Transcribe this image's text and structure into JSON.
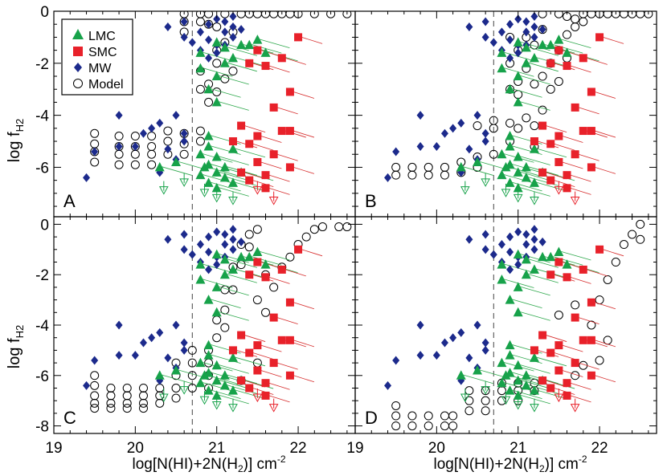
{
  "colors": {
    "LMC": "#17a24a",
    "SMC": "#e8212a",
    "MW": "#1c2a8c",
    "Model": "#000000",
    "LMC_tail": "#2ea84c",
    "SMC_tail": "#d62b2b"
  },
  "axis_labels": {
    "y_main": "log f",
    "y_sub": "H2",
    "x_prefix": "log[N(HI)+2N(H",
    "x_sub": "2",
    "x_suffix": ")] cm",
    "x_sup": "-2"
  },
  "legend": [
    {
      "name": "LMC",
      "marker": "triangle"
    },
    {
      "name": "SMC",
      "marker": "square"
    },
    {
      "name": "MW",
      "marker": "diamond"
    },
    {
      "name": "Model",
      "marker": "open-circle"
    }
  ],
  "chart_data": {
    "type": "scatter",
    "xlim": [
      19,
      22.7
    ],
    "xticks": [
      "19",
      "20",
      "21",
      "22"
    ],
    "threshold_x": 20.7,
    "top_row_ylim": [
      -7.9,
      0
    ],
    "top_row_yticks": [
      "0",
      "-2",
      "-4",
      "-6"
    ],
    "bottom_row_ylim": [
      -8.3,
      0.3
    ],
    "bottom_row_yticks": [
      "0",
      "-2",
      "-4",
      "-6",
      "-8"
    ],
    "panel_labels": [
      "A",
      "B",
      "C",
      "D"
    ],
    "MW": [
      [
        19.4,
        -6.4
      ],
      [
        19.5,
        -5.4
      ],
      [
        19.8,
        -4.0
      ],
      [
        19.8,
        -5.2
      ],
      [
        20.0,
        -5.2
      ],
      [
        20.1,
        -4.7
      ],
      [
        20.2,
        -4.5
      ],
      [
        20.3,
        -4.3
      ],
      [
        20.3,
        -6.2
      ],
      [
        20.4,
        -5.3
      ],
      [
        20.4,
        -0.6
      ],
      [
        20.5,
        -4.0
      ],
      [
        20.5,
        -5.7
      ],
      [
        20.6,
        -1.0
      ],
      [
        20.6,
        -5.0
      ],
      [
        20.6,
        -4.7
      ],
      [
        20.6,
        -0.4
      ],
      [
        20.7,
        -1.2
      ],
      [
        20.8,
        -0.8
      ],
      [
        20.8,
        -1.5
      ],
      [
        20.9,
        -0.5
      ],
      [
        20.9,
        -1.1
      ],
      [
        21.0,
        -0.3
      ],
      [
        21.0,
        -1.3
      ],
      [
        21.1,
        -0.8
      ],
      [
        21.1,
        -0.4
      ],
      [
        21.2,
        -1.0
      ],
      [
        21.2,
        -0.6
      ],
      [
        21.3,
        -0.7
      ],
      [
        21.0,
        -1.6
      ],
      [
        20.9,
        -1.8
      ],
      [
        21.1,
        -1.3
      ],
      [
        21.2,
        -0.2
      ]
    ],
    "LMC": [
      [
        20.3,
        -6.0
      ],
      [
        20.5,
        -5.8
      ],
      [
        20.8,
        -2.2
      ],
      [
        20.8,
        -1.6
      ],
      [
        20.9,
        -3.0
      ],
      [
        20.9,
        -4.8
      ],
      [
        20.8,
        -5.5
      ],
      [
        20.9,
        -5.9
      ],
      [
        21.0,
        -1.2
      ],
      [
        21.0,
        -2.5
      ],
      [
        21.0,
        -3.5
      ],
      [
        21.1,
        -2.0
      ],
      [
        21.1,
        -1.4
      ],
      [
        21.2,
        -1.8
      ],
      [
        21.3,
        -1.3
      ],
      [
        21.4,
        -1.3
      ],
      [
        21.5,
        -1.1
      ],
      [
        21.6,
        -1.6
      ],
      [
        20.8,
        -6.3
      ],
      [
        20.9,
        -6.6
      ],
      [
        21.0,
        -6.2
      ],
      [
        21.0,
        -6.8
      ],
      [
        21.1,
        -6.4
      ],
      [
        21.1,
        -6.0
      ],
      [
        21.2,
        -6.6
      ],
      [
        21.2,
        -5.3
      ],
      [
        21.3,
        -6.2
      ],
      [
        20.9,
        -5.2
      ],
      [
        21.0,
        -5.6
      ],
      [
        20.85,
        -6.0
      ]
    ],
    "LMC_upper_limits": [
      [
        20.35,
        -6.9
      ],
      [
        20.6,
        -6.6
      ],
      [
        21.0,
        -7.2
      ],
      [
        21.2,
        -7.3
      ],
      [
        20.85,
        -7.0
      ]
    ],
    "SMC": [
      [
        21.2,
        -5.0
      ],
      [
        21.3,
        -4.4
      ],
      [
        21.3,
        -6.2
      ],
      [
        21.4,
        -5.1
      ],
      [
        21.4,
        -2.0
      ],
      [
        21.5,
        -5.8
      ],
      [
        21.5,
        -1.5
      ],
      [
        21.6,
        -6.3
      ],
      [
        21.6,
        -2.1
      ],
      [
        21.6,
        -6.8
      ],
      [
        21.7,
        -5.5
      ],
      [
        21.7,
        -3.7
      ],
      [
        21.8,
        -4.6
      ],
      [
        21.8,
        -1.8
      ],
      [
        21.9,
        -3.1
      ],
      [
        21.9,
        -4.6
      ],
      [
        21.9,
        -6.0
      ],
      [
        22.0,
        -1.0
      ],
      [
        21.5,
        -4.8
      ],
      [
        21.4,
        -6.5
      ]
    ],
    "SMC_upper_limits": [
      [
        21.5,
        -6.9
      ],
      [
        21.7,
        -7.3
      ]
    ],
    "model_A": [
      [
        19.5,
        -4.7
      ],
      [
        19.5,
        -5.1
      ],
      [
        19.5,
        -5.4
      ],
      [
        19.5,
        -5.8
      ],
      [
        19.8,
        -4.8
      ],
      [
        19.8,
        -5.2
      ],
      [
        19.8,
        -5.5
      ],
      [
        19.8,
        -5.9
      ],
      [
        20.0,
        -4.8
      ],
      [
        20.0,
        -5.2
      ],
      [
        20.0,
        -5.5
      ],
      [
        20.0,
        -5.9
      ],
      [
        20.2,
        -4.8
      ],
      [
        20.2,
        -5.2
      ],
      [
        20.2,
        -5.5
      ],
      [
        20.2,
        -5.9
      ],
      [
        20.4,
        -4.6
      ],
      [
        20.4,
        -5.0
      ],
      [
        20.4,
        -5.5
      ],
      [
        20.6,
        -4.7
      ],
      [
        20.6,
        -5.1
      ],
      [
        20.6,
        -5.5
      ],
      [
        20.8,
        -4.6
      ],
      [
        20.8,
        -5.0
      ],
      [
        20.8,
        -3.0
      ],
      [
        20.8,
        -2.3
      ],
      [
        20.8,
        -0.1
      ],
      [
        20.8,
        -0.4
      ],
      [
        20.9,
        -3.5
      ],
      [
        20.9,
        -2.8
      ],
      [
        20.9,
        -0.1
      ],
      [
        20.9,
        -0.5
      ],
      [
        21.0,
        -3.1
      ],
      [
        21.0,
        -2.0
      ],
      [
        21.0,
        -0.6
      ],
      [
        21.0,
        -1.5
      ],
      [
        21.1,
        -2.6
      ],
      [
        21.1,
        -1.2
      ],
      [
        21.1,
        -0.1
      ],
      [
        21.2,
        -2.3
      ],
      [
        21.2,
        -0.8
      ],
      [
        21.3,
        -0.1
      ],
      [
        21.4,
        -0.1
      ],
      [
        21.5,
        -0.1
      ],
      [
        21.6,
        -0.1
      ],
      [
        21.7,
        -0.1
      ],
      [
        21.8,
        -0.1
      ],
      [
        21.9,
        -0.1
      ],
      [
        22.0,
        -0.1
      ],
      [
        22.2,
        -0.1
      ],
      [
        22.4,
        -0.1
      ],
      [
        22.6,
        -0.1
      ],
      [
        20.6,
        -0.1
      ],
      [
        20.6,
        -0.4
      ],
      [
        20.6,
        -0.8
      ]
    ],
    "model_B": [
      [
        19.5,
        -6.0
      ],
      [
        19.5,
        -6.3
      ],
      [
        19.7,
        -6.0
      ],
      [
        19.7,
        -6.3
      ],
      [
        19.9,
        -6.0
      ],
      [
        19.9,
        -6.3
      ],
      [
        20.1,
        -6.0
      ],
      [
        20.1,
        -6.3
      ],
      [
        20.3,
        -5.8
      ],
      [
        20.3,
        -6.2
      ],
      [
        20.5,
        -4.4
      ],
      [
        20.5,
        -5.6
      ],
      [
        20.5,
        -6.0
      ],
      [
        20.7,
        -4.2
      ],
      [
        20.7,
        -4.5
      ],
      [
        20.7,
        -5.5
      ],
      [
        20.9,
        -4.3
      ],
      [
        20.9,
        -5.0
      ],
      [
        21.0,
        -4.5
      ],
      [
        21.1,
        -4.1
      ],
      [
        21.2,
        -4.4
      ],
      [
        21.2,
        -5.2
      ],
      [
        21.3,
        -3.8
      ],
      [
        20.9,
        -3.0
      ],
      [
        20.9,
        -2.0
      ],
      [
        20.9,
        -1.0
      ],
      [
        21.0,
        -2.7
      ],
      [
        21.0,
        -1.5
      ],
      [
        21.0,
        -3.2
      ],
      [
        21.1,
        -2.2
      ],
      [
        21.1,
        -1.0
      ],
      [
        21.2,
        -2.8
      ],
      [
        21.2,
        -1.3
      ],
      [
        21.3,
        -2.5
      ],
      [
        21.3,
        -0.7
      ],
      [
        21.4,
        -2.0
      ],
      [
        21.4,
        -3.0
      ],
      [
        21.5,
        -1.5
      ],
      [
        21.5,
        -2.7
      ],
      [
        21.6,
        -0.9
      ],
      [
        21.6,
        -1.8
      ],
      [
        21.7,
        -0.3
      ],
      [
        21.7,
        -0.6
      ],
      [
        21.8,
        -0.1
      ],
      [
        21.8,
        -0.4
      ],
      [
        21.9,
        -0.1
      ],
      [
        22.0,
        -0.1
      ],
      [
        22.1,
        -0.1
      ],
      [
        22.2,
        -0.1
      ],
      [
        22.3,
        -0.1
      ],
      [
        22.4,
        -0.1
      ],
      [
        22.5,
        -0.1
      ],
      [
        22.6,
        -0.1
      ],
      [
        21.3,
        -0.1
      ],
      [
        21.5,
        -0.1
      ],
      [
        21.6,
        -0.2
      ]
    ],
    "model_C": [
      [
        19.5,
        -6.0
      ],
      [
        19.5,
        -6.4
      ],
      [
        19.5,
        -6.8
      ],
      [
        19.5,
        -7.1
      ],
      [
        19.5,
        -7.3
      ],
      [
        19.7,
        -6.5
      ],
      [
        19.7,
        -6.8
      ],
      [
        19.7,
        -7.1
      ],
      [
        19.7,
        -7.3
      ],
      [
        19.9,
        -6.5
      ],
      [
        19.9,
        -6.8
      ],
      [
        19.9,
        -7.1
      ],
      [
        19.9,
        -7.3
      ],
      [
        20.1,
        -6.5
      ],
      [
        20.1,
        -6.8
      ],
      [
        20.1,
        -7.1
      ],
      [
        20.1,
        -7.3
      ],
      [
        20.3,
        -6.5
      ],
      [
        20.3,
        -6.8
      ],
      [
        20.3,
        -7.1
      ],
      [
        20.5,
        -5.5
      ],
      [
        20.5,
        -6.0
      ],
      [
        20.5,
        -6.5
      ],
      [
        20.5,
        -6.9
      ],
      [
        20.7,
        -5.0
      ],
      [
        20.7,
        -5.5
      ],
      [
        20.7,
        -6.0
      ],
      [
        20.7,
        -6.5
      ],
      [
        20.9,
        -5.0
      ],
      [
        20.9,
        -5.5
      ],
      [
        20.9,
        -6.0
      ],
      [
        20.9,
        -6.5
      ],
      [
        21.0,
        -3.8
      ],
      [
        21.0,
        -4.5
      ],
      [
        21.1,
        -2.6
      ],
      [
        21.1,
        -3.4
      ],
      [
        21.1,
        -4.1
      ],
      [
        21.2,
        -1.7
      ],
      [
        21.2,
        -2.6
      ],
      [
        21.3,
        -0.8
      ],
      [
        21.3,
        -1.6
      ],
      [
        21.4,
        -0.4
      ],
      [
        21.4,
        -0.9
      ],
      [
        21.5,
        -0.2
      ],
      [
        21.5,
        -3.0
      ],
      [
        21.6,
        -2.0
      ],
      [
        21.6,
        -3.5
      ],
      [
        21.7,
        -2.5
      ],
      [
        21.8,
        -1.7
      ],
      [
        21.9,
        -1.3
      ],
      [
        22.0,
        -0.8
      ],
      [
        22.1,
        -0.5
      ],
      [
        22.2,
        -0.2
      ],
      [
        22.3,
        -0.1
      ],
      [
        22.5,
        -0.1
      ],
      [
        22.6,
        -0.1
      ],
      [
        21.5,
        -5.5
      ],
      [
        21.3,
        -6.2
      ]
    ],
    "model_D": [
      [
        19.5,
        -7.2
      ],
      [
        19.5,
        -7.6
      ],
      [
        19.5,
        -8.0
      ],
      [
        19.7,
        -7.6
      ],
      [
        19.7,
        -8.0
      ],
      [
        19.9,
        -7.6
      ],
      [
        19.9,
        -8.0
      ],
      [
        20.1,
        -7.6
      ],
      [
        20.1,
        -8.0
      ],
      [
        20.2,
        -7.6
      ],
      [
        20.2,
        -8.0
      ],
      [
        20.4,
        -6.6
      ],
      [
        20.4,
        -7.0
      ],
      [
        20.4,
        -7.4
      ],
      [
        20.6,
        -6.6
      ],
      [
        20.6,
        -7.0
      ],
      [
        20.6,
        -7.4
      ],
      [
        20.8,
        -6.3
      ],
      [
        20.8,
        -6.6
      ],
      [
        20.8,
        -7.0
      ],
      [
        21.0,
        -6.3
      ],
      [
        21.0,
        -6.6
      ],
      [
        21.0,
        -7.0
      ],
      [
        21.2,
        -6.3
      ],
      [
        21.2,
        -6.6
      ],
      [
        21.5,
        -3.6
      ],
      [
        21.7,
        -3.2
      ],
      [
        21.8,
        -5.6
      ],
      [
        21.9,
        -4.0
      ],
      [
        22.0,
        -3.0
      ],
      [
        22.1,
        -2.2
      ],
      [
        22.1,
        -4.6
      ],
      [
        22.2,
        -1.5
      ],
      [
        22.3,
        -0.8
      ],
      [
        22.4,
        -0.4
      ],
      [
        22.5,
        0.0
      ],
      [
        22.5,
        -0.6
      ],
      [
        22.0,
        -5.4
      ],
      [
        21.7,
        -6.0
      ]
    ]
  }
}
